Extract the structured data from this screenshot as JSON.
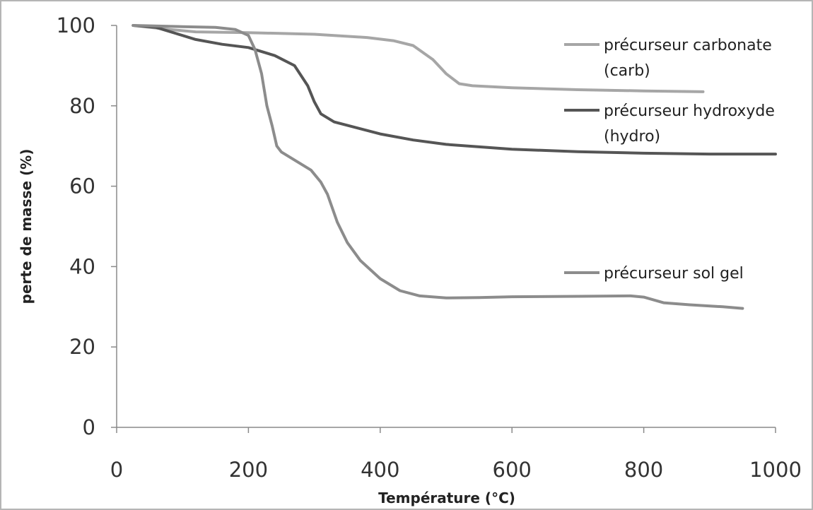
{
  "chart_data": {
    "type": "line",
    "xlabel": "Température (°C)",
    "ylabel": "perte de masse (%)",
    "xlim": [
      0,
      1000
    ],
    "ylim": [
      0,
      100
    ],
    "x_ticks": [
      0,
      200,
      400,
      600,
      800,
      1000
    ],
    "y_ticks": [
      0,
      20,
      40,
      60,
      80,
      100
    ],
    "grid": false,
    "series": [
      {
        "name": "précurseur carbonate (carb)",
        "legend_lines": [
          "précurseur carbonate",
          "(carb)"
        ],
        "color": "#a6a6a6",
        "points": [
          [
            25,
            100
          ],
          [
            80,
            99
          ],
          [
            120,
            98.4
          ],
          [
            200,
            98.2
          ],
          [
            300,
            97.8
          ],
          [
            380,
            97
          ],
          [
            420,
            96.2
          ],
          [
            450,
            95
          ],
          [
            480,
            91.5
          ],
          [
            500,
            88
          ],
          [
            520,
            85.5
          ],
          [
            540,
            85
          ],
          [
            600,
            84.5
          ],
          [
            700,
            84
          ],
          [
            800,
            83.7
          ],
          [
            890,
            83.5
          ]
        ]
      },
      {
        "name": "précurseur hydroxyde (hydro)",
        "legend_lines": [
          "précurseur hydroxyde",
          "(hydro)"
        ],
        "color": "#555555",
        "points": [
          [
            25,
            100
          ],
          [
            60,
            99.5
          ],
          [
            90,
            98
          ],
          [
            120,
            96.5
          ],
          [
            160,
            95.3
          ],
          [
            200,
            94.5
          ],
          [
            240,
            92.5
          ],
          [
            270,
            90
          ],
          [
            290,
            85
          ],
          [
            300,
            81
          ],
          [
            310,
            78
          ],
          [
            330,
            76
          ],
          [
            400,
            73
          ],
          [
            450,
            71.5
          ],
          [
            500,
            70.4
          ],
          [
            600,
            69.2
          ],
          [
            700,
            68.6
          ],
          [
            800,
            68.2
          ],
          [
            900,
            68
          ],
          [
            1000,
            68
          ]
        ]
      },
      {
        "name": "précurseur sol gel",
        "legend_lines": [
          "précurseur sol gel"
        ],
        "color": "#8c8c8c",
        "points": [
          [
            25,
            100
          ],
          [
            100,
            99.7
          ],
          [
            150,
            99.5
          ],
          [
            180,
            99
          ],
          [
            200,
            97.5
          ],
          [
            210,
            94
          ],
          [
            220,
            88
          ],
          [
            228,
            80
          ],
          [
            236,
            75
          ],
          [
            243,
            70
          ],
          [
            250,
            68.5
          ],
          [
            270,
            66.5
          ],
          [
            295,
            64
          ],
          [
            310,
            61
          ],
          [
            320,
            58
          ],
          [
            335,
            51
          ],
          [
            350,
            46
          ],
          [
            370,
            41.5
          ],
          [
            400,
            37
          ],
          [
            430,
            34
          ],
          [
            460,
            32.7
          ],
          [
            500,
            32.2
          ],
          [
            550,
            32.3
          ],
          [
            600,
            32.5
          ],
          [
            700,
            32.6
          ],
          [
            780,
            32.7
          ],
          [
            800,
            32.4
          ],
          [
            830,
            31
          ],
          [
            870,
            30.5
          ],
          [
            920,
            30
          ],
          [
            950,
            29.6
          ]
        ]
      }
    ]
  }
}
